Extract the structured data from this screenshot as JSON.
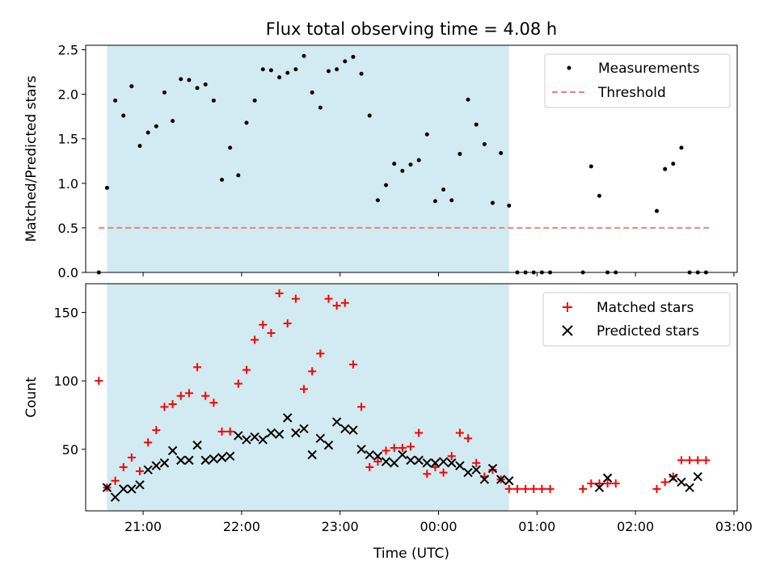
{
  "chart_data": {
    "type": "scatter",
    "title": "Flux total observing time = 4.08 h",
    "xlabel": "Time (UTC)",
    "x_unit": "time",
    "x_ticks": [
      "21:00",
      "22:00",
      "23:00",
      "00:00",
      "01:00",
      "02:00",
      "03:00"
    ],
    "xlim": [
      "20:25",
      "03:02"
    ],
    "shaded_interval": [
      "20:38",
      "00:43"
    ],
    "shade_color": "#add8e6",
    "panels": [
      {
        "ylabel": "Matched/Predicted stars",
        "ylim": [
          0,
          2.55
        ],
        "y_ticks": [
          "0.0",
          "0.5",
          "1.0",
          "1.5",
          "2.0",
          "2.5"
        ],
        "legend_position": "top-right",
        "threshold": {
          "name": "Threshold",
          "value": 0.5,
          "x_range": [
            "20:33",
            "02:45"
          ],
          "color": "#f08080"
        },
        "series": [
          {
            "name": "Measurements",
            "marker": "dot",
            "color": "#000000",
            "x": [
              "20:33",
              "20:38",
              "20:43",
              "20:48",
              "20:53",
              "20:58",
              "21:03",
              "21:08",
              "21:13",
              "21:18",
              "21:23",
              "21:28",
              "21:33",
              "21:38",
              "21:43",
              "21:48",
              "21:53",
              "21:58",
              "22:03",
              "22:08",
              "22:13",
              "22:18",
              "22:23",
              "22:28",
              "22:33",
              "22:38",
              "22:43",
              "22:48",
              "22:53",
              "22:58",
              "23:03",
              "23:08",
              "23:13",
              "23:18",
              "23:23",
              "23:28",
              "23:33",
              "23:38",
              "23:43",
              "23:48",
              "23:53",
              "23:58",
              "00:03",
              "00:08",
              "00:13",
              "00:18",
              "00:23",
              "00:28",
              "00:33",
              "00:38",
              "00:43",
              "00:48",
              "00:53",
              "00:58",
              "01:03",
              "01:08",
              "01:28",
              "01:33",
              "01:38",
              "01:43",
              "01:48",
              "02:13",
              "02:18",
              "02:23",
              "02:28",
              "02:33",
              "02:38",
              "02:43"
            ],
            "y": [
              0.0,
              0.95,
              1.93,
              1.76,
              2.09,
              1.42,
              1.57,
              1.64,
              2.02,
              1.7,
              2.17,
              2.16,
              2.07,
              2.11,
              1.93,
              1.04,
              1.4,
              1.09,
              1.68,
              1.93,
              2.28,
              2.27,
              2.19,
              2.24,
              2.28,
              2.43,
              2.02,
              1.85,
              2.26,
              2.28,
              2.37,
              2.42,
              2.23,
              1.76,
              0.81,
              0.98,
              1.22,
              1.14,
              1.21,
              1.26,
              1.55,
              0.8,
              0.93,
              0.81,
              1.33,
              1.94,
              1.66,
              1.44,
              0.78,
              1.34,
              0.75,
              0.0,
              0.0,
              0.0,
              0.0,
              0.0,
              0.0,
              1.19,
              0.86,
              0.0,
              0.0,
              0.69,
              1.16,
              1.22,
              1.4,
              0.0,
              0.0,
              0.0
            ]
          }
        ]
      },
      {
        "ylabel": "Count",
        "ylim": [
          5,
          171
        ],
        "y_ticks": [
          "50",
          "100",
          "150"
        ],
        "legend_position": "top-right",
        "series": [
          {
            "name": "Matched stars",
            "marker": "plus",
            "color": "#ff0000",
            "x": [
              "20:33",
              "20:38",
              "20:43",
              "20:48",
              "20:53",
              "20:58",
              "21:03",
              "21:08",
              "21:13",
              "21:18",
              "21:23",
              "21:28",
              "21:33",
              "21:38",
              "21:43",
              "21:48",
              "21:53",
              "21:58",
              "22:03",
              "22:08",
              "22:13",
              "22:18",
              "22:23",
              "22:28",
              "22:33",
              "22:38",
              "22:43",
              "22:48",
              "22:53",
              "22:58",
              "23:03",
              "23:08",
              "23:13",
              "23:18",
              "23:23",
              "23:28",
              "23:33",
              "23:38",
              "23:43",
              "23:48",
              "23:53",
              "23:58",
              "00:03",
              "00:08",
              "00:13",
              "00:18",
              "00:23",
              "00:28",
              "00:33",
              "00:38",
              "00:43",
              "00:48",
              "00:53",
              "00:58",
              "01:03",
              "01:08",
              "01:28",
              "01:33",
              "01:38",
              "01:43",
              "01:48",
              "02:13",
              "02:18",
              "02:23",
              "02:28",
              "02:33",
              "02:38",
              "02:43"
            ],
            "y": [
              100,
              22,
              27,
              37,
              44,
              34,
              55,
              64,
              81,
              83,
              89,
              91,
              110,
              89,
              84,
              63,
              63,
              98,
              108,
              130,
              141,
              135,
              164,
              142,
              160,
              94,
              107,
              120,
              160,
              155,
              157,
              112,
              81,
              37,
              41,
              49,
              51,
              51,
              52,
              62,
              32,
              37,
              33,
              45,
              62,
              58,
              40,
              30,
              35,
              28,
              21,
              21,
              21,
              21,
              21,
              21,
              21,
              25,
              25,
              25,
              25,
              21,
              26,
              30,
              42,
              42,
              42,
              42
            ]
          },
          {
            "name": "Predicted stars",
            "marker": "x",
            "color": "#000000",
            "x": [
              "20:38",
              "20:43",
              "20:48",
              "20:53",
              "20:58",
              "21:03",
              "21:08",
              "21:13",
              "21:18",
              "21:23",
              "21:28",
              "21:33",
              "21:38",
              "21:43",
              "21:48",
              "21:53",
              "21:58",
              "22:03",
              "22:08",
              "22:13",
              "22:18",
              "22:23",
              "22:28",
              "22:33",
              "22:38",
              "22:43",
              "22:48",
              "22:53",
              "22:58",
              "23:03",
              "23:08",
              "23:13",
              "23:18",
              "23:23",
              "23:28",
              "23:33",
              "23:38",
              "23:43",
              "23:48",
              "23:53",
              "23:58",
              "00:03",
              "00:08",
              "00:13",
              "00:18",
              "00:23",
              "00:28",
              "00:33",
              "00:38",
              "00:43",
              "01:38",
              "01:43",
              "02:23",
              "02:28",
              "02:33",
              "02:38"
            ],
            "y": [
              22,
              15,
              21,
              21,
              24,
              35,
              38,
              40,
              49,
              42,
              42,
              53,
              42,
              43,
              44,
              45,
              60,
              57,
              59,
              57,
              62,
              61,
              73,
              62,
              65,
              46,
              58,
              53,
              70,
              65,
              64,
              50,
              46,
              45,
              41,
              40,
              46,
              42,
              42,
              40,
              40,
              41,
              40,
              38,
              33,
              35,
              28,
              36,
              28,
              27,
              22,
              29,
              29,
              26,
              22,
              30
            ]
          }
        ]
      }
    ]
  }
}
